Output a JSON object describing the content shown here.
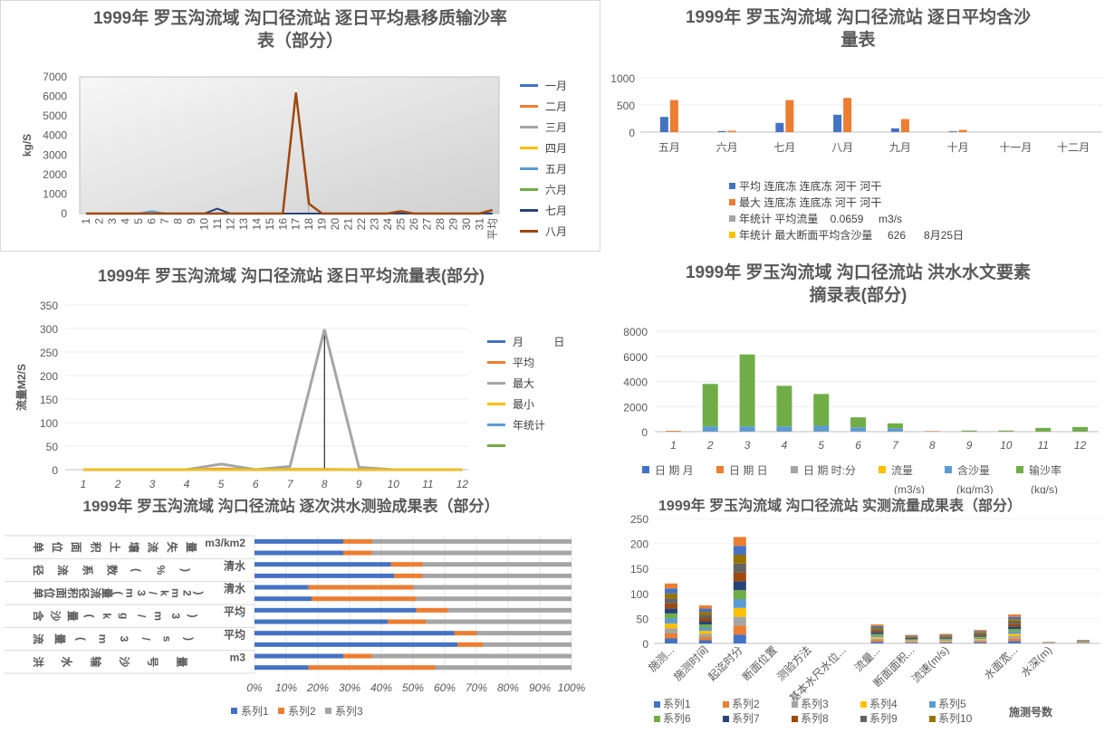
{
  "charts": [
    {
      "title": "1999年 罗玉沟流域 沟口径流站 逐日平均悬移质输沙率表（部分）",
      "title_lines": [
        "1999年 罗玉沟流域 沟口径流站 逐日平均悬移质输沙率",
        "表（部分）"
      ],
      "ylabel": "kg/S",
      "ylim": [
        0,
        7000
      ],
      "yticks": [
        "0",
        "1000",
        "2000",
        "3000",
        "4000",
        "5000",
        "6000",
        "7000"
      ],
      "xticks": [
        "1",
        "2",
        "3",
        "4",
        "5",
        "6",
        "7",
        "8",
        "9",
        "10",
        "11",
        "12",
        "13",
        "14",
        "15",
        "16",
        "17",
        "18",
        "19",
        "20",
        "21",
        "22",
        "23",
        "24",
        "25",
        "26",
        "27",
        "28",
        "29",
        "30",
        "31",
        "平均"
      ],
      "legend": [
        "一月",
        "二月",
        "三月",
        "四月",
        "五月",
        "六月",
        "七月",
        "八月"
      ]
    },
    {
      "title": "1999年 罗玉沟流域 沟口径流站 逐日平均含沙量表",
      "title_lines": [
        "1999年 罗玉沟流域 沟口径流站 逐日平均含沙",
        "量表"
      ],
      "yticks": [
        "0",
        "500",
        "1000"
      ],
      "categories": [
        "五月",
        "六月",
        "七月",
        "八月",
        "九月",
        "十月",
        "十一月",
        "十二月"
      ],
      "legend": [
        "平均 连底冻 连底冻 河干 河干",
        "最大 连底冻 连底冻 河干 河干",
        "年统计 平均流量    0.0659     m3/s",
        "年统计 最大断面平均含沙量     626      8月25日"
      ]
    },
    {
      "title": "1999年 罗玉沟流域 沟口径流站 逐日平均流量表(部分)",
      "ylabel": "流量M2/S",
      "yticks": [
        "0",
        "50",
        "100",
        "150",
        "200",
        "250",
        "300",
        "350"
      ],
      "xticks": [
        "1",
        "2",
        "3",
        "4",
        "5",
        "6",
        "7",
        "8",
        "9",
        "10",
        "11",
        "12"
      ],
      "legend": [
        "月          日",
        "平均",
        "最大",
        "最小",
        "年统计",
        ""
      ]
    },
    {
      "title": "1999年 罗玉沟流域 沟口径流站 洪水水文要素摘录表(部分)",
      "title_lines": [
        "1999年 罗玉沟流域 沟口径流站 洪水水文要素",
        "摘录表(部分)"
      ],
      "yticks": [
        "0",
        "2000",
        "4000",
        "6000",
        "8000"
      ],
      "xticks": [
        "1",
        "2",
        "3",
        "4",
        "5",
        "6",
        "7",
        "8",
        "9",
        "10",
        "11",
        "12"
      ],
      "legend_row1": [
        "日  期  月",
        "日  期  日",
        "日  期 时:分",
        "流量",
        "含沙量",
        "输沙率"
      ],
      "legend_row2": [
        "(m3/s)",
        "(kg/m3)",
        "(kg/s)"
      ]
    },
    {
      "title": "1999年 罗玉沟流域 沟口径流站 逐次洪水测验成果表（部分）",
      "xticks": [
        "0%",
        "10%",
        "20%",
        "30%",
        "40%",
        "50%",
        "60%",
        "70%",
        "80%",
        "90%",
        "100%"
      ],
      "cat_labels": [
        {
          "text": "单位面积土壤流失量",
          "right": "m3/km2"
        },
        {
          "text": "径流系数(%)",
          "right": "清水"
        },
        {
          "text": "单位面积径流量(m3/km2)",
          "right": "清水"
        },
        {
          "text": "含沙量(kg/m3)",
          "right": "平均"
        },
        {
          "text": "流量(m3/s)",
          "right": "平均"
        },
        {
          "text": "洪水输沙号量",
          "right": "m3"
        }
      ],
      "legend": [
        "系列1",
        "系列2",
        "系列3"
      ]
    },
    {
      "title": "1999年 罗玉沟流域 沟口径流站 实测流量成果表（部分）",
      "yticks": [
        "0",
        "50",
        "100",
        "150",
        "200",
        "250"
      ],
      "categories": [
        "施测...",
        "施测时间",
        "起迄时分",
        "断面位置",
        "测验方法",
        "基本水尺水位...",
        "流量...",
        "断面面积...",
        "流速(m/s)",
        "",
        "水面宽...",
        "水深(m)",
        ""
      ],
      "xlabel": "施测号数",
      "legend": [
        "系列1",
        "系列2",
        "系列3",
        "系列4",
        "系列5",
        "系列6",
        "系列7",
        "系列8",
        "系列9",
        "系列10"
      ]
    }
  ],
  "colors": {
    "c1": "#4472C4",
    "c2": "#ED7D31",
    "c3": "#A5A5A5",
    "c4": "#FFC000",
    "c5": "#5B9BD5",
    "c6": "#70AD47",
    "c7": "#264478",
    "c8": "#9E480E",
    "c9": "#636363",
    "c10": "#997300"
  },
  "chart_data": [
    {
      "type": "line",
      "title": "1999年 罗玉沟流域 沟口径流站 逐日平均悬移质输沙率表（部分）",
      "ylabel": "kg/S",
      "ylim": [
        0,
        7000
      ],
      "x": [
        "1",
        "2",
        "3",
        "4",
        "5",
        "6",
        "7",
        "8",
        "9",
        "10",
        "11",
        "12",
        "13",
        "14",
        "15",
        "16",
        "17",
        "18",
        "19",
        "20",
        "21",
        "22",
        "23",
        "24",
        "25",
        "26",
        "27",
        "28",
        "29",
        "30",
        "31",
        "平均"
      ],
      "series": [
        {
          "name": "一月",
          "values": [
            0,
            0,
            0,
            0,
            0,
            0,
            0,
            0,
            0,
            0,
            0,
            0,
            0,
            0,
            0,
            0,
            0,
            0,
            0,
            0,
            0,
            0,
            0,
            0,
            0,
            0,
            0,
            0,
            0,
            0,
            0,
            0
          ]
        },
        {
          "name": "二月",
          "values": [
            0,
            0,
            0,
            0,
            0,
            0,
            0,
            0,
            0,
            0,
            0,
            0,
            0,
            0,
            0,
            0,
            0,
            0,
            0,
            0,
            0,
            0,
            0,
            0,
            0,
            0,
            0,
            0,
            0,
            0,
            0,
            0
          ]
        },
        {
          "name": "三月",
          "values": [
            0,
            0,
            0,
            0,
            0,
            0,
            0,
            0,
            0,
            0,
            0,
            0,
            0,
            0,
            0,
            0,
            6200,
            0,
            0,
            0,
            0,
            0,
            0,
            0,
            0,
            0,
            0,
            0,
            0,
            0,
            0,
            0
          ]
        },
        {
          "name": "四月",
          "values": [
            0,
            0,
            0,
            0,
            0,
            0,
            0,
            0,
            0,
            0,
            0,
            0,
            0,
            0,
            0,
            0,
            0,
            0,
            0,
            0,
            0,
            0,
            0,
            0,
            0,
            0,
            0,
            0,
            0,
            0,
            0,
            0
          ]
        },
        {
          "name": "五月",
          "values": [
            0,
            0,
            0,
            0,
            0,
            120,
            0,
            0,
            0,
            0,
            0,
            0,
            0,
            0,
            0,
            0,
            0,
            0,
            0,
            0,
            0,
            0,
            0,
            0,
            0,
            0,
            0,
            0,
            0,
            0,
            0,
            0
          ]
        },
        {
          "name": "六月",
          "values": [
            0,
            0,
            0,
            0,
            0,
            0,
            0,
            0,
            0,
            0,
            0,
            0,
            0,
            0,
            0,
            0,
            0,
            0,
            0,
            0,
            0,
            0,
            0,
            0,
            0,
            0,
            0,
            0,
            0,
            0,
            0,
            0
          ]
        },
        {
          "name": "七月",
          "values": [
            0,
            0,
            0,
            0,
            0,
            0,
            0,
            0,
            0,
            0,
            250,
            0,
            0,
            0,
            0,
            0,
            0,
            0,
            0,
            0,
            0,
            0,
            0,
            0,
            0,
            0,
            0,
            0,
            0,
            0,
            0,
            0
          ]
        },
        {
          "name": "八月",
          "values": [
            0,
            0,
            0,
            0,
            0,
            0,
            0,
            0,
            0,
            0,
            0,
            0,
            0,
            0,
            0,
            0,
            6200,
            500,
            0,
            0,
            0,
            0,
            0,
            0,
            120,
            0,
            0,
            0,
            0,
            0,
            0,
            180
          ]
        }
      ]
    },
    {
      "type": "bar",
      "title": "1999年 罗玉沟流域 沟口径流站 逐日平均含沙量表",
      "ylim": [
        0,
        1000
      ],
      "categories": [
        "五月",
        "六月",
        "七月",
        "八月",
        "九月",
        "十月",
        "十一月",
        "十二月"
      ],
      "series": [
        {
          "name": "平均 连底冻 连底冻 河干 河干",
          "values": [
            280,
            20,
            170,
            320,
            70,
            15,
            0,
            0
          ]
        },
        {
          "name": "最大 连底冻 连底冻 河干 河干",
          "values": [
            590,
            25,
            590,
            630,
            240,
            40,
            0,
            0
          ]
        },
        {
          "name": "年统计 平均流量    0.0659     m3/s",
          "values": [
            0,
            0,
            0,
            0,
            0,
            0,
            0,
            0
          ]
        },
        {
          "name": "年统计 最大断面平均含沙量     626      8月25日",
          "values": [
            0,
            0,
            0,
            0,
            0,
            0,
            0,
            0
          ]
        }
      ]
    },
    {
      "type": "line",
      "title": "1999年 罗玉沟流域 沟口径流站 逐日平均流量表(部分)",
      "ylabel": "流量M2/S",
      "ylim": [
        0,
        350
      ],
      "x": [
        "1",
        "2",
        "3",
        "4",
        "5",
        "6",
        "7",
        "8",
        "9",
        "10",
        "11",
        "12"
      ],
      "series": [
        {
          "name": "月          日",
          "values": [
            0,
            0,
            0,
            0,
            0,
            0,
            0,
            0,
            0,
            0,
            0,
            0
          ]
        },
        {
          "name": "平均",
          "values": [
            0,
            0,
            0,
            0,
            2,
            0,
            1,
            1,
            0,
            0,
            0,
            0
          ]
        },
        {
          "name": "最大",
          "values": [
            0,
            0,
            0,
            0,
            12,
            0,
            7,
            298,
            5,
            0,
            0,
            0
          ]
        },
        {
          "name": "最小",
          "values": [
            0,
            0,
            0,
            0,
            0,
            0,
            0,
            0,
            0,
            0,
            0,
            0
          ]
        },
        {
          "name": "年统计",
          "values": [
            0,
            0,
            0,
            0,
            0,
            0,
            0,
            0,
            0,
            0,
            0,
            0
          ]
        }
      ]
    },
    {
      "type": "bar",
      "stacked": true,
      "title": "1999年 罗玉沟流域 沟口径流站 洪水水文要素摘录表(部分)",
      "ylim": [
        0,
        8000
      ],
      "categories": [
        "1",
        "2",
        "3",
        "4",
        "5",
        "6",
        "7",
        "8",
        "9",
        "10",
        "11",
        "12"
      ],
      "series": [
        {
          "name": "日  期  月",
          "values": [
            10,
            10,
            10,
            10,
            10,
            10,
            10,
            10,
            10,
            10,
            10,
            10
          ]
        },
        {
          "name": "日  期  日",
          "values": [
            60,
            10,
            10,
            10,
            10,
            10,
            10,
            40,
            10,
            10,
            10,
            10
          ]
        },
        {
          "name": "日  期 时:分",
          "values": [
            0,
            0,
            0,
            0,
            0,
            0,
            0,
            0,
            0,
            0,
            0,
            0
          ]
        },
        {
          "name": "流量 (m3/s)",
          "values": [
            0,
            0,
            0,
            0,
            0,
            0,
            0,
            0,
            0,
            0,
            0,
            0
          ]
        },
        {
          "name": "含沙量 (kg/m3)",
          "values": [
            0,
            400,
            400,
            400,
            450,
            320,
            250,
            0,
            0,
            0,
            0,
            0
          ]
        },
        {
          "name": "输沙率 (kg/s)",
          "values": [
            0,
            3380,
            5730,
            3230,
            2530,
            800,
            390,
            0,
            70,
            70,
            280,
            350
          ]
        }
      ]
    },
    {
      "type": "bar",
      "horizontal": true,
      "stacked_percent": true,
      "title": "1999年 罗玉沟流域 沟口径流站 逐次洪水测验成果表（部分）",
      "categories": [
        "r1",
        "r2",
        "r3",
        "r4",
        "r5",
        "r6",
        "r7",
        "r8",
        "r9",
        "r10",
        "r11",
        "r12"
      ],
      "series": [
        {
          "name": "系列1",
          "values": [
            28,
            28,
            43,
            44,
            17,
            18,
            51,
            42,
            63,
            64,
            28,
            17
          ]
        },
        {
          "name": "系列2",
          "values": [
            9,
            9,
            10,
            9,
            33,
            33,
            10,
            12,
            7,
            8,
            9,
            40
          ]
        },
        {
          "name": "系列3",
          "values": [
            63,
            63,
            47,
            47,
            50,
            49,
            39,
            46,
            30,
            28,
            63,
            43
          ]
        }
      ]
    },
    {
      "type": "bar",
      "stacked": true,
      "title": "1999年 罗玉沟流域 沟口径流站 实测流量成果表（部分）",
      "ylim": [
        0,
        250
      ],
      "xlabel": "施测号数",
      "categories": [
        "施测...",
        "施测时间",
        "起迄时分",
        "断面位置",
        "测验方法",
        "基本水尺水位...",
        "流量...",
        "断面面积...",
        "流速(m/s)",
        "",
        "水面宽...",
        "水深(m)",
        ""
      ],
      "totals": [
        120,
        76,
        213,
        0,
        0,
        0,
        38,
        17,
        19,
        27,
        58,
        3,
        7
      ],
      "series_count": 10,
      "series_names": [
        "系列1",
        "系列2",
        "系列3",
        "系列4",
        "系列5",
        "系列6",
        "系列7",
        "系列8",
        "系列9",
        "系列10"
      ]
    }
  ]
}
